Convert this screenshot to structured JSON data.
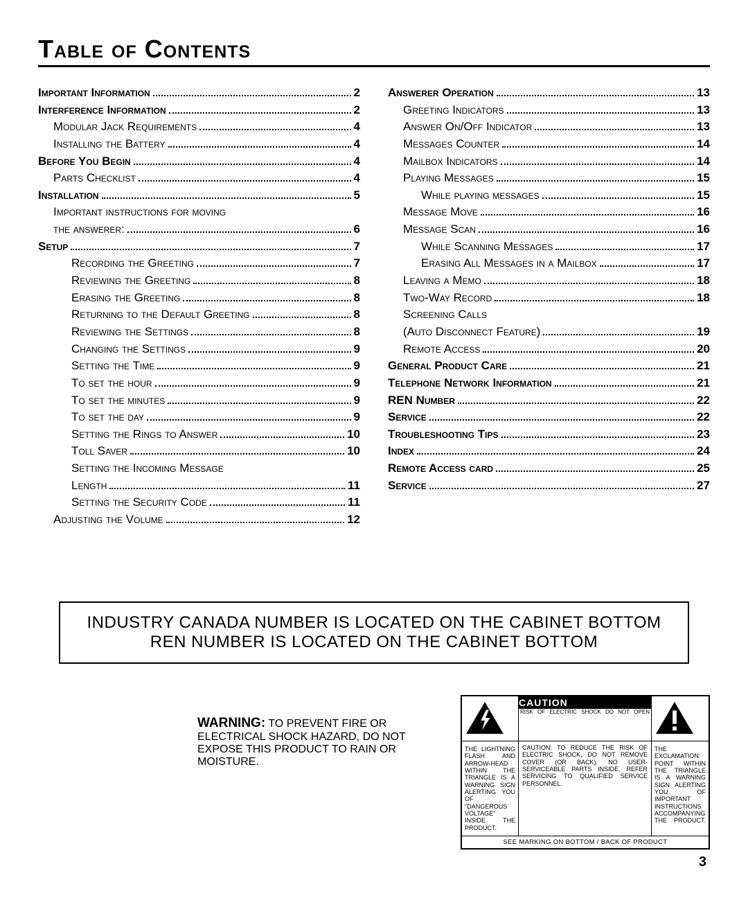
{
  "title": "Table of Contents",
  "page_number": "3",
  "col1": [
    {
      "label": "Important Information",
      "page": "2",
      "bold": true,
      "indent": 0
    },
    {
      "label": "Interference Information",
      "page": "2",
      "bold": true,
      "indent": 0
    },
    {
      "label": "Modular Jack Requirements",
      "page": "4",
      "bold": false,
      "indent": 1
    },
    {
      "label": "Installing the Battery",
      "page": "4",
      "bold": false,
      "indent": 1
    },
    {
      "label": "Before You Begin",
      "page": "4",
      "bold": true,
      "indent": 0
    },
    {
      "label": "Parts Checklist",
      "page": "4",
      "bold": false,
      "indent": 1
    },
    {
      "label": "Installation",
      "page": "5",
      "bold": true,
      "indent": 0
    },
    {
      "label": "Important instructions for moving",
      "page": "",
      "bold": false,
      "indent": 1,
      "noleader": true
    },
    {
      "label": "the answerer:",
      "page": "6",
      "bold": false,
      "indent": 1
    },
    {
      "label": "Setup",
      "page": "7",
      "bold": true,
      "indent": 0
    },
    {
      "label": "Recording the Greeting",
      "page": "7",
      "bold": false,
      "indent": 2
    },
    {
      "label": "Reviewing the Greeting",
      "page": "8",
      "bold": false,
      "indent": 2
    },
    {
      "label": "Erasing the Greeting",
      "page": "8",
      "bold": false,
      "indent": 2
    },
    {
      "label": "Returning to the Default Greeting",
      "page": "8",
      "bold": false,
      "indent": 2
    },
    {
      "label": "Reviewing the Settings",
      "page": "8",
      "bold": false,
      "indent": 2
    },
    {
      "label": "Changing the Settings",
      "page": "9",
      "bold": false,
      "indent": 2
    },
    {
      "label": "Setting the Time",
      "page": "9",
      "bold": false,
      "indent": 2
    },
    {
      "label": "To set the hour",
      "page": "9",
      "bold": false,
      "indent": 2
    },
    {
      "label": "To set the minutes",
      "page": "9",
      "bold": false,
      "indent": 2
    },
    {
      "label": "To set the day",
      "page": "9",
      "bold": false,
      "indent": 2
    },
    {
      "label": "Setting the Rings to Answer",
      "page": "10",
      "bold": false,
      "indent": 2
    },
    {
      "label": "Toll Saver",
      "page": "10",
      "bold": false,
      "indent": 2
    },
    {
      "label": "Setting the Incoming Message",
      "page": "",
      "bold": false,
      "indent": 2,
      "noleader": true
    },
    {
      "label": "Length",
      "page": "11",
      "bold": false,
      "indent": 2
    },
    {
      "label": "Setting the Security Code",
      "page": "11",
      "bold": false,
      "indent": 2
    },
    {
      "label": "Adjusting the Volume",
      "page": "12",
      "bold": false,
      "indent": 1
    }
  ],
  "col2": [
    {
      "label": "Answerer Operation",
      "page": "13",
      "bold": true,
      "indent": 0
    },
    {
      "label": "Greeting Indicators",
      "page": "13",
      "bold": false,
      "indent": 1
    },
    {
      "label": "Answer On/Off Indicator",
      "page": "13",
      "bold": false,
      "indent": 1
    },
    {
      "label": "Messages Counter",
      "page": "14",
      "bold": false,
      "indent": 1
    },
    {
      "label": "Mailbox Indicators",
      "page": "14",
      "bold": false,
      "indent": 1
    },
    {
      "label": "Playing Messages",
      "page": "15",
      "bold": false,
      "indent": 1
    },
    {
      "label": "While playing messages",
      "page": "15",
      "bold": false,
      "indent": 2
    },
    {
      "label": "Message Move",
      "page": "16",
      "bold": false,
      "indent": 1
    },
    {
      "label": "Message Scan",
      "page": "16",
      "bold": false,
      "indent": 1
    },
    {
      "label": "While Scanning Messages",
      "page": "17",
      "bold": false,
      "indent": 2
    },
    {
      "label": "Erasing All Messages in a Mailbox",
      "page": "17",
      "bold": false,
      "indent": 2
    },
    {
      "label": "Leaving a Memo",
      "page": "18",
      "bold": false,
      "indent": 1
    },
    {
      "label": "Two-Way Record",
      "page": "18",
      "bold": false,
      "indent": 1
    },
    {
      "label": "Screening Calls",
      "page": "",
      "bold": false,
      "indent": 1,
      "noleader": true
    },
    {
      "label": "(Auto Disconnect Feature)",
      "page": "19",
      "bold": false,
      "indent": 1
    },
    {
      "label": "Remote Access",
      "page": "20",
      "bold": false,
      "indent": 1
    },
    {
      "label": "General Product Care",
      "page": "21",
      "bold": true,
      "indent": 0
    },
    {
      "label": "Telephone Network Information",
      "page": "21",
      "bold": true,
      "indent": 0
    },
    {
      "label": "REN Number",
      "page": "22",
      "bold": true,
      "indent": 0
    },
    {
      "label": "Service",
      "page": "22",
      "bold": true,
      "indent": 0
    },
    {
      "label": "Troubleshooting Tips",
      "page": "23",
      "bold": true,
      "indent": 0
    },
    {
      "label": "Index",
      "page": "24",
      "bold": true,
      "indent": 0
    },
    {
      "label": "Remote Access card",
      "page": "25",
      "bold": true,
      "indent": 0
    },
    {
      "label": "Service",
      "page": "27",
      "bold": true,
      "indent": 0
    }
  ],
  "notice": {
    "line1": "INDUSTRY CANADA NUMBER IS LOCATED ON THE CABINET BOTTOM",
    "line2": "REN NUMBER IS LOCATED ON THE CABINET BOTTOM"
  },
  "warning": {
    "bold": "WARNING:",
    "rest": " TO PREVENT FIRE OR ELECTRICAL SHOCK HAZARD, DO NOT EXPOSE THIS PRODUCT TO RAIN OR MOISTURE."
  },
  "caution": {
    "header": "CAUTION",
    "sub": "RISK OF ELECTRIC SHOCK DO NOT OPEN",
    "left": "THE LIGHTNING FLASH AND ARROW-HEAD WITHIN THE TRIANGLE IS A WARNING SIGN ALERTING YOU OF \"DANGEROUS VOLTAGE\" INSIDE THE PRODUCT.",
    "mid": "CAUTION: TO REDUCE THE RISK OF ELECTRIC SHOCK, DO NOT REMOVE COVER (OR BACK). NO USER-SERVICEABLE PARTS INSIDE. REFER SERVICING TO QUALIFIED SERVICE PERSONNEL.",
    "right": "THE EXCLAMATION POINT WITHIN THE TRIANGLE IS A WARNING SIGN ALERTING YOU OF IMPORTANT INSTRUCTIONS ACCOMPANYING THE PRODUCT.",
    "foot": "SEE MARKING ON BOTTOM / BACK OF PRODUCT"
  }
}
